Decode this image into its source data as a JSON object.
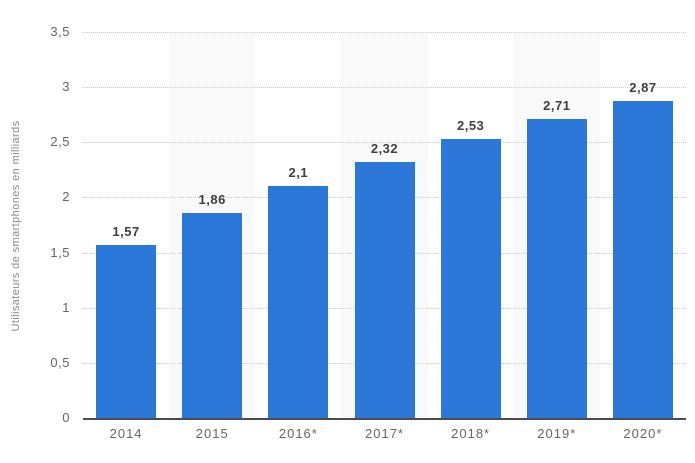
{
  "colors": {
    "bar": "#2b78d9",
    "band": "#f9f9f9",
    "gridline": "#c9c9c9",
    "axis_line": "#4c4c4c",
    "tick_text": "#666666",
    "value_text": "#3f3f3f",
    "y_title_text": "#8c8c8c",
    "background": "#ffffff"
  },
  "chart_data": {
    "type": "bar",
    "title": "",
    "xlabel": "",
    "ylabel": "Utilisateurs de smartphones en milliards",
    "categories": [
      "2014",
      "2015",
      "2016*",
      "2017*",
      "2018*",
      "2019*",
      "2020*"
    ],
    "values": [
      1.57,
      1.86,
      2.1,
      2.32,
      2.53,
      2.71,
      2.87
    ],
    "value_labels": [
      "1,57",
      "1,86",
      "2,1",
      "2,32",
      "2,53",
      "2,71",
      "2,87"
    ],
    "ylim": [
      0,
      3.5
    ],
    "y_ticks": [
      {
        "v": 3.5,
        "label": "3,5"
      },
      {
        "v": 3,
        "label": "3"
      },
      {
        "v": 2.5,
        "label": "2,5"
      },
      {
        "v": 2,
        "label": "2"
      },
      {
        "v": 1.5,
        "label": "1,5"
      },
      {
        "v": 1,
        "label": "1"
      },
      {
        "v": 0.5,
        "label": "0,5"
      },
      {
        "v": 0,
        "label": "0"
      }
    ],
    "grid": "horizontal-dotted",
    "legend": "none",
    "banded_column_indices": [
      1,
      3,
      5
    ]
  }
}
